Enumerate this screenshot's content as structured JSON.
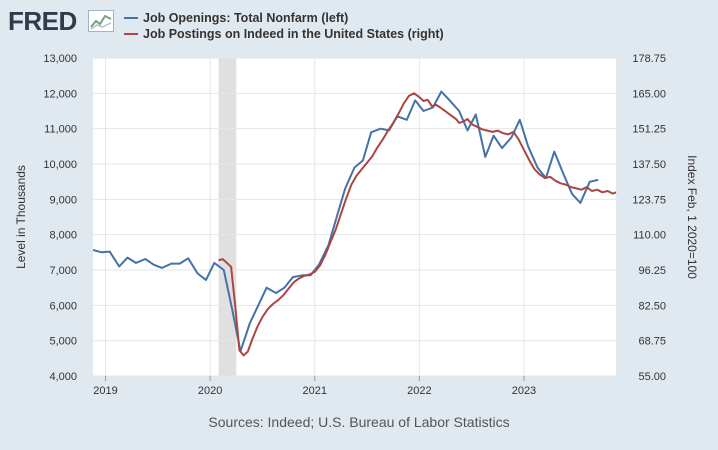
{
  "header": {
    "logo_text": "FRED"
  },
  "colors": {
    "series_left": "#4572a7",
    "series_right": "#aa4643",
    "plot_bg": "#ffffff",
    "page_bg": "#e1e9f0",
    "recession": "#e0e0e0",
    "grid": "#e6e6e6"
  },
  "chart_data": {
    "type": "line",
    "title": "",
    "source": "Sources: Indeed; U.S. Bureau of Labor Statistics",
    "ylabel_left": "Level in Thousands",
    "ylabel_right": "Index Feb, 1 2020=100",
    "xlim": [
      2018.88,
      2023.88
    ],
    "ylim_left": [
      4000,
      13000
    ],
    "ylim_right": [
      55.0,
      178.75
    ],
    "x_ticks": [
      2019,
      2020,
      2021,
      2022,
      2023
    ],
    "x_tick_labels": [
      "2019",
      "2020",
      "2021",
      "2022",
      "2023"
    ],
    "y_left_ticks": [
      4000,
      5000,
      6000,
      7000,
      8000,
      9000,
      10000,
      11000,
      12000,
      13000
    ],
    "y_left_tick_labels": [
      "4,000",
      "5,000",
      "6,000",
      "7,000",
      "8,000",
      "9,000",
      "10,000",
      "11,000",
      "12,000",
      "13,000"
    ],
    "y_right_ticks": [
      55.0,
      68.75,
      82.5,
      96.25,
      110.0,
      123.75,
      137.5,
      151.25,
      165.0,
      178.75
    ],
    "y_right_tick_labels": [
      "55.00",
      "68.75",
      "82.50",
      "96.25",
      "110.00",
      "123.75",
      "137.50",
      "151.25",
      "165.00",
      "178.75"
    ],
    "recession": [
      2020.08,
      2020.25
    ],
    "series": [
      {
        "name": "Job Openings: Total Nonfarm (left)",
        "axis": "left",
        "x": [
          2018.88,
          2018.96,
          2019.04,
          2019.13,
          2019.21,
          2019.29,
          2019.38,
          2019.46,
          2019.54,
          2019.63,
          2019.71,
          2019.79,
          2019.88,
          2019.96,
          2020.04,
          2020.13,
          2020.21,
          2020.29,
          2020.38,
          2020.46,
          2020.54,
          2020.63,
          2020.71,
          2020.79,
          2020.88,
          2020.96,
          2021.04,
          2021.13,
          2021.21,
          2021.29,
          2021.38,
          2021.46,
          2021.54,
          2021.63,
          2021.71,
          2021.79,
          2021.88,
          2021.96,
          2022.04,
          2022.13,
          2022.21,
          2022.29,
          2022.38,
          2022.46,
          2022.54,
          2022.63,
          2022.71,
          2022.79,
          2022.88,
          2022.96,
          2023.04,
          2023.13,
          2023.21,
          2023.29,
          2023.38,
          2023.46,
          2023.54,
          2023.63,
          2023.71
        ],
        "values": [
          7570,
          7500,
          7520,
          7100,
          7350,
          7200,
          7310,
          7150,
          7060,
          7180,
          7180,
          7330,
          6900,
          6720,
          7200,
          7000,
          5900,
          4700,
          5500,
          6000,
          6500,
          6350,
          6500,
          6800,
          6850,
          6850,
          7150,
          7700,
          8500,
          9300,
          9900,
          10100,
          10900,
          11000,
          10950,
          11350,
          11250,
          11800,
          11500,
          11600,
          12050,
          11800,
          11500,
          10950,
          11400,
          10200,
          10800,
          10450,
          10750,
          11250,
          10500,
          9900,
          9600,
          10350,
          9700,
          9150,
          8900,
          9500,
          9550
        ]
      },
      {
        "name": "Job Postings on Indeed in the United States (right)",
        "axis": "right",
        "x": [
          2020.08,
          2020.12,
          2020.16,
          2020.2,
          2020.24,
          2020.28,
          2020.32,
          2020.36,
          2020.4,
          2020.45,
          2020.5,
          2020.55,
          2020.6,
          2020.65,
          2020.7,
          2020.75,
          2020.8,
          2020.85,
          2020.9,
          2020.95,
          2021.0,
          2021.05,
          2021.1,
          2021.15,
          2021.2,
          2021.25,
          2021.3,
          2021.35,
          2021.4,
          2021.45,
          2021.5,
          2021.55,
          2021.6,
          2021.65,
          2021.7,
          2021.75,
          2021.8,
          2021.85,
          2021.9,
          2021.95,
          2022.0,
          2022.04,
          2022.08,
          2022.12,
          2022.16,
          2022.2,
          2022.25,
          2022.3,
          2022.35,
          2022.38,
          2022.42,
          2022.46,
          2022.5,
          2022.55,
          2022.6,
          2022.65,
          2022.7,
          2022.75,
          2022.8,
          2022.85,
          2022.9,
          2022.95,
          2023.0,
          2023.05,
          2023.1,
          2023.15,
          2023.2,
          2023.25,
          2023.3,
          2023.35,
          2023.4,
          2023.45,
          2023.5,
          2023.55,
          2023.6,
          2023.65,
          2023.7,
          2023.75,
          2023.8,
          2023.85,
          2023.88
        ],
        "values": [
          100.0,
          100.5,
          99.0,
          97.5,
          82.0,
          65.0,
          63.0,
          64.5,
          69.0,
          74.0,
          78.0,
          81.0,
          83.0,
          84.5,
          86.5,
          89.0,
          91.5,
          93.0,
          94.0,
          94.5,
          95.5,
          98.0,
          102.0,
          107.0,
          112.0,
          118.0,
          124.0,
          129.5,
          133.0,
          135.5,
          138.0,
          140.5,
          144.0,
          147.0,
          150.5,
          153.5,
          157.0,
          161.0,
          164.0,
          165.0,
          163.5,
          162.0,
          162.5,
          160.0,
          160.5,
          159.5,
          158.0,
          156.5,
          155.0,
          153.5,
          154.0,
          155.0,
          153.0,
          152.0,
          151.0,
          150.5,
          150.0,
          150.5,
          149.5,
          149.0,
          150.0,
          147.0,
          143.0,
          139.0,
          135.5,
          133.5,
          132.0,
          132.5,
          131.0,
          130.0,
          129.5,
          128.5,
          128.0,
          127.5,
          128.5,
          127.0,
          127.5,
          126.5,
          127.0,
          126.0,
          126.5
        ]
      }
    ]
  }
}
